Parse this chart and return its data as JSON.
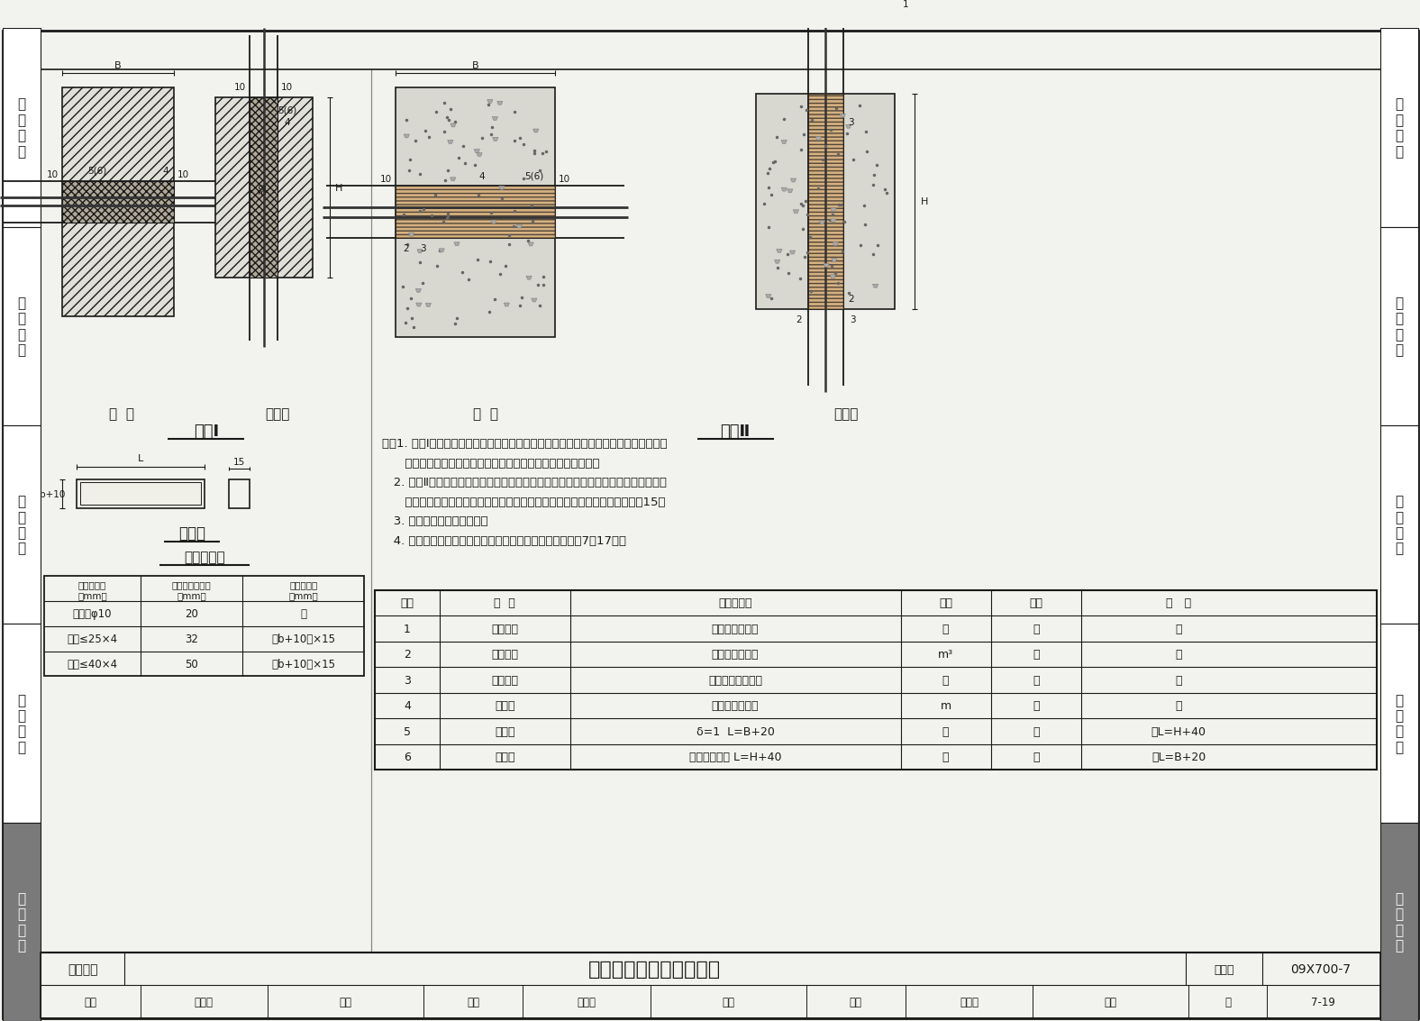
{
  "page_title": "接地线穿墙、穿楼板安装",
  "figure_number": "09X700-7",
  "page_number": "7-19",
  "category": "防雷接地",
  "solution1_label": "方案Ⅰ",
  "solution2_label": "方案Ⅱ",
  "chuan_qiang_label": "穿  墙",
  "chuan_lou_ban_label": "穿楼板",
  "fang_tao_guan_label": "方套管",
  "tao_guan_size_title": "套管尺寸表",
  "note1a": "注：1. 方案Ⅰ：接地线穿过外墙或楼板后，其套管管口需用沥青麻丝或建筑密封膏堵死，",
  "note1b": "      内墙套管管口可根据实际情况处理，套管的纵向缝隙应焊接。",
  "note2a": "   2. 方案Ⅱ：将接地线与其套管的缝隙用柔性有机防火堵料密封。在接地线套管与孔洞",
  "note2b": "      的缝隙内填入不燃纤维，在不燃纤维表面涂塞柔性有机防火堵料，厚度至少15。",
  "note3": "   3. 套管的纵向缝隙应焊接。",
  "note4": "   4. 穿过外墙的套管，应向室外倾斜，具体做法见本图集第7－17页。",
  "table_headers": [
    "序号",
    "名  称",
    "型号及规格",
    "单位",
    "数量",
    "备   注"
  ],
  "table_rows": [
    [
      "1",
      "支持夹具",
      "由工程设计确定",
      "－",
      "－",
      "－"
    ],
    [
      "2",
      "不燃纤维",
      "矿棉或玻璃纤维",
      "m³",
      "－",
      "－"
    ],
    [
      "3",
      "防火堵料",
      "柔性有机防火堵料",
      "－",
      "－",
      "－"
    ],
    [
      "4",
      "接地线",
      "由工程设计确定",
      "m",
      "－",
      "－"
    ],
    [
      "5",
      "方套管",
      "δ=1  L=B+20",
      "根",
      "－",
      "或L=H+40"
    ],
    [
      "6",
      "圆套管",
      "公称直径见表 L=H+40",
      "根",
      "－",
      "或L=B+20"
    ]
  ],
  "size_table_headers": [
    "接地线规格\n（mm）",
    "圆套管公称直径\n（mm）",
    "方套管尺寸\n（mm）"
  ],
  "size_table_rows": [
    [
      "圆钢＜φ10",
      "20",
      "－"
    ],
    [
      "扁钢≤25×4",
      "32",
      "（b+10）×15"
    ],
    [
      "扁钢≤40×4",
      "50",
      "（b+10）×15"
    ]
  ],
  "sidebar_sections": [
    "机\n房\n工\n程",
    "供\n电\n电\n源",
    "缆\n线\n敷\n设",
    "设\n备\n安\n装",
    "防\n雷\n接\n地"
  ],
  "sidebar_dark": [
    false,
    false,
    false,
    false,
    true
  ]
}
